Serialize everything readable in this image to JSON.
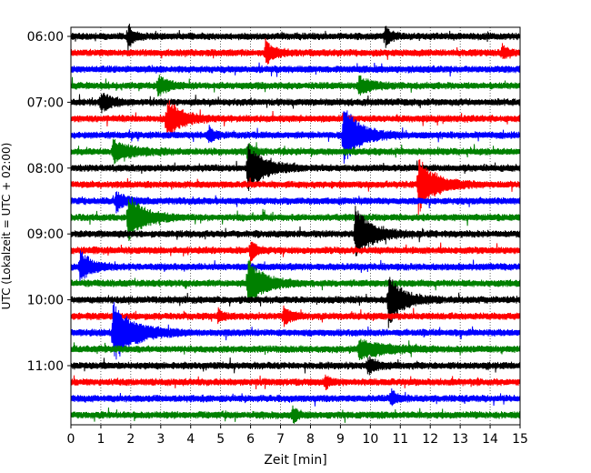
{
  "chart_data": {
    "type": "line",
    "subtype": "helicorder",
    "xlabel": "Zeit  [min]",
    "ylabel": "UTC (Lokalzeit = UTC + 02:00)",
    "xlim": [
      0,
      15
    ],
    "x_ticks": [
      "0",
      "1",
      "2",
      "3",
      "4",
      "5",
      "6",
      "7",
      "8",
      "9",
      "10",
      "11",
      "12",
      "13",
      "14",
      "15"
    ],
    "y_ticks": [
      "06:00",
      "07:00",
      "08:00",
      "09:00",
      "10:00",
      "11:00"
    ],
    "grid": "x-dotted",
    "trace_colors": [
      "#000000",
      "#ff0000",
      "#0000ff",
      "#008000"
    ],
    "trace_count": 24,
    "minutes_per_trace": 15,
    "start_time": "06:00",
    "events": [
      {
        "trace": 0,
        "minute": 1.9,
        "amp": 1.6,
        "duration": 0.3
      },
      {
        "trace": 0,
        "minute": 10.5,
        "amp": 1.4,
        "duration": 0.3
      },
      {
        "trace": 1,
        "minute": 6.5,
        "amp": 1.5,
        "duration": 0.5
      },
      {
        "trace": 1,
        "minute": 14.4,
        "amp": 1.0,
        "duration": 0.3
      },
      {
        "trace": 3,
        "minute": 2.9,
        "amp": 1.2,
        "duration": 0.6
      },
      {
        "trace": 3,
        "minute": 9.6,
        "amp": 1.2,
        "duration": 0.7
      },
      {
        "trace": 4,
        "minute": 1.0,
        "amp": 1.2,
        "duration": 0.6
      },
      {
        "trace": 5,
        "minute": 3.2,
        "amp": 2.7,
        "duration": 0.8
      },
      {
        "trace": 6,
        "minute": 9.1,
        "amp": 4.0,
        "duration": 0.9
      },
      {
        "trace": 6,
        "minute": 4.6,
        "amp": 1.2,
        "duration": 0.3
      },
      {
        "trace": 7,
        "minute": 1.4,
        "amp": 1.5,
        "duration": 1.0
      },
      {
        "trace": 7,
        "minute": 5.9,
        "amp": 1.2,
        "duration": 0.3
      },
      {
        "trace": 8,
        "minute": 5.9,
        "amp": 3.3,
        "duration": 0.9
      },
      {
        "trace": 9,
        "minute": 11.6,
        "amp": 3.8,
        "duration": 0.9
      },
      {
        "trace": 10,
        "minute": 1.5,
        "amp": 1.3,
        "duration": 0.5
      },
      {
        "trace": 11,
        "minute": 1.9,
        "amp": 3.1,
        "duration": 0.9
      },
      {
        "trace": 12,
        "minute": 9.5,
        "amp": 3.6,
        "duration": 0.9
      },
      {
        "trace": 13,
        "minute": 6.0,
        "amp": 1.4,
        "duration": 0.3
      },
      {
        "trace": 14,
        "minute": 0.3,
        "amp": 2.2,
        "duration": 0.6
      },
      {
        "trace": 15,
        "minute": 5.9,
        "amp": 3.2,
        "duration": 0.9
      },
      {
        "trace": 16,
        "minute": 10.6,
        "amp": 3.4,
        "duration": 0.8
      },
      {
        "trace": 17,
        "minute": 7.1,
        "amp": 1.3,
        "duration": 0.4
      },
      {
        "trace": 17,
        "minute": 4.9,
        "amp": 0.9,
        "duration": 0.3
      },
      {
        "trace": 18,
        "minute": 1.4,
        "amp": 3.9,
        "duration": 1.2
      },
      {
        "trace": 19,
        "minute": 9.6,
        "amp": 1.2,
        "duration": 1.5
      },
      {
        "trace": 20,
        "minute": 9.9,
        "amp": 1.1,
        "duration": 0.5
      },
      {
        "trace": 21,
        "minute": 8.5,
        "amp": 0.9,
        "duration": 0.3
      },
      {
        "trace": 22,
        "minute": 10.7,
        "amp": 1.1,
        "duration": 0.3
      },
      {
        "trace": 23,
        "minute": 7.4,
        "amp": 1.1,
        "duration": 0.3
      }
    ]
  }
}
